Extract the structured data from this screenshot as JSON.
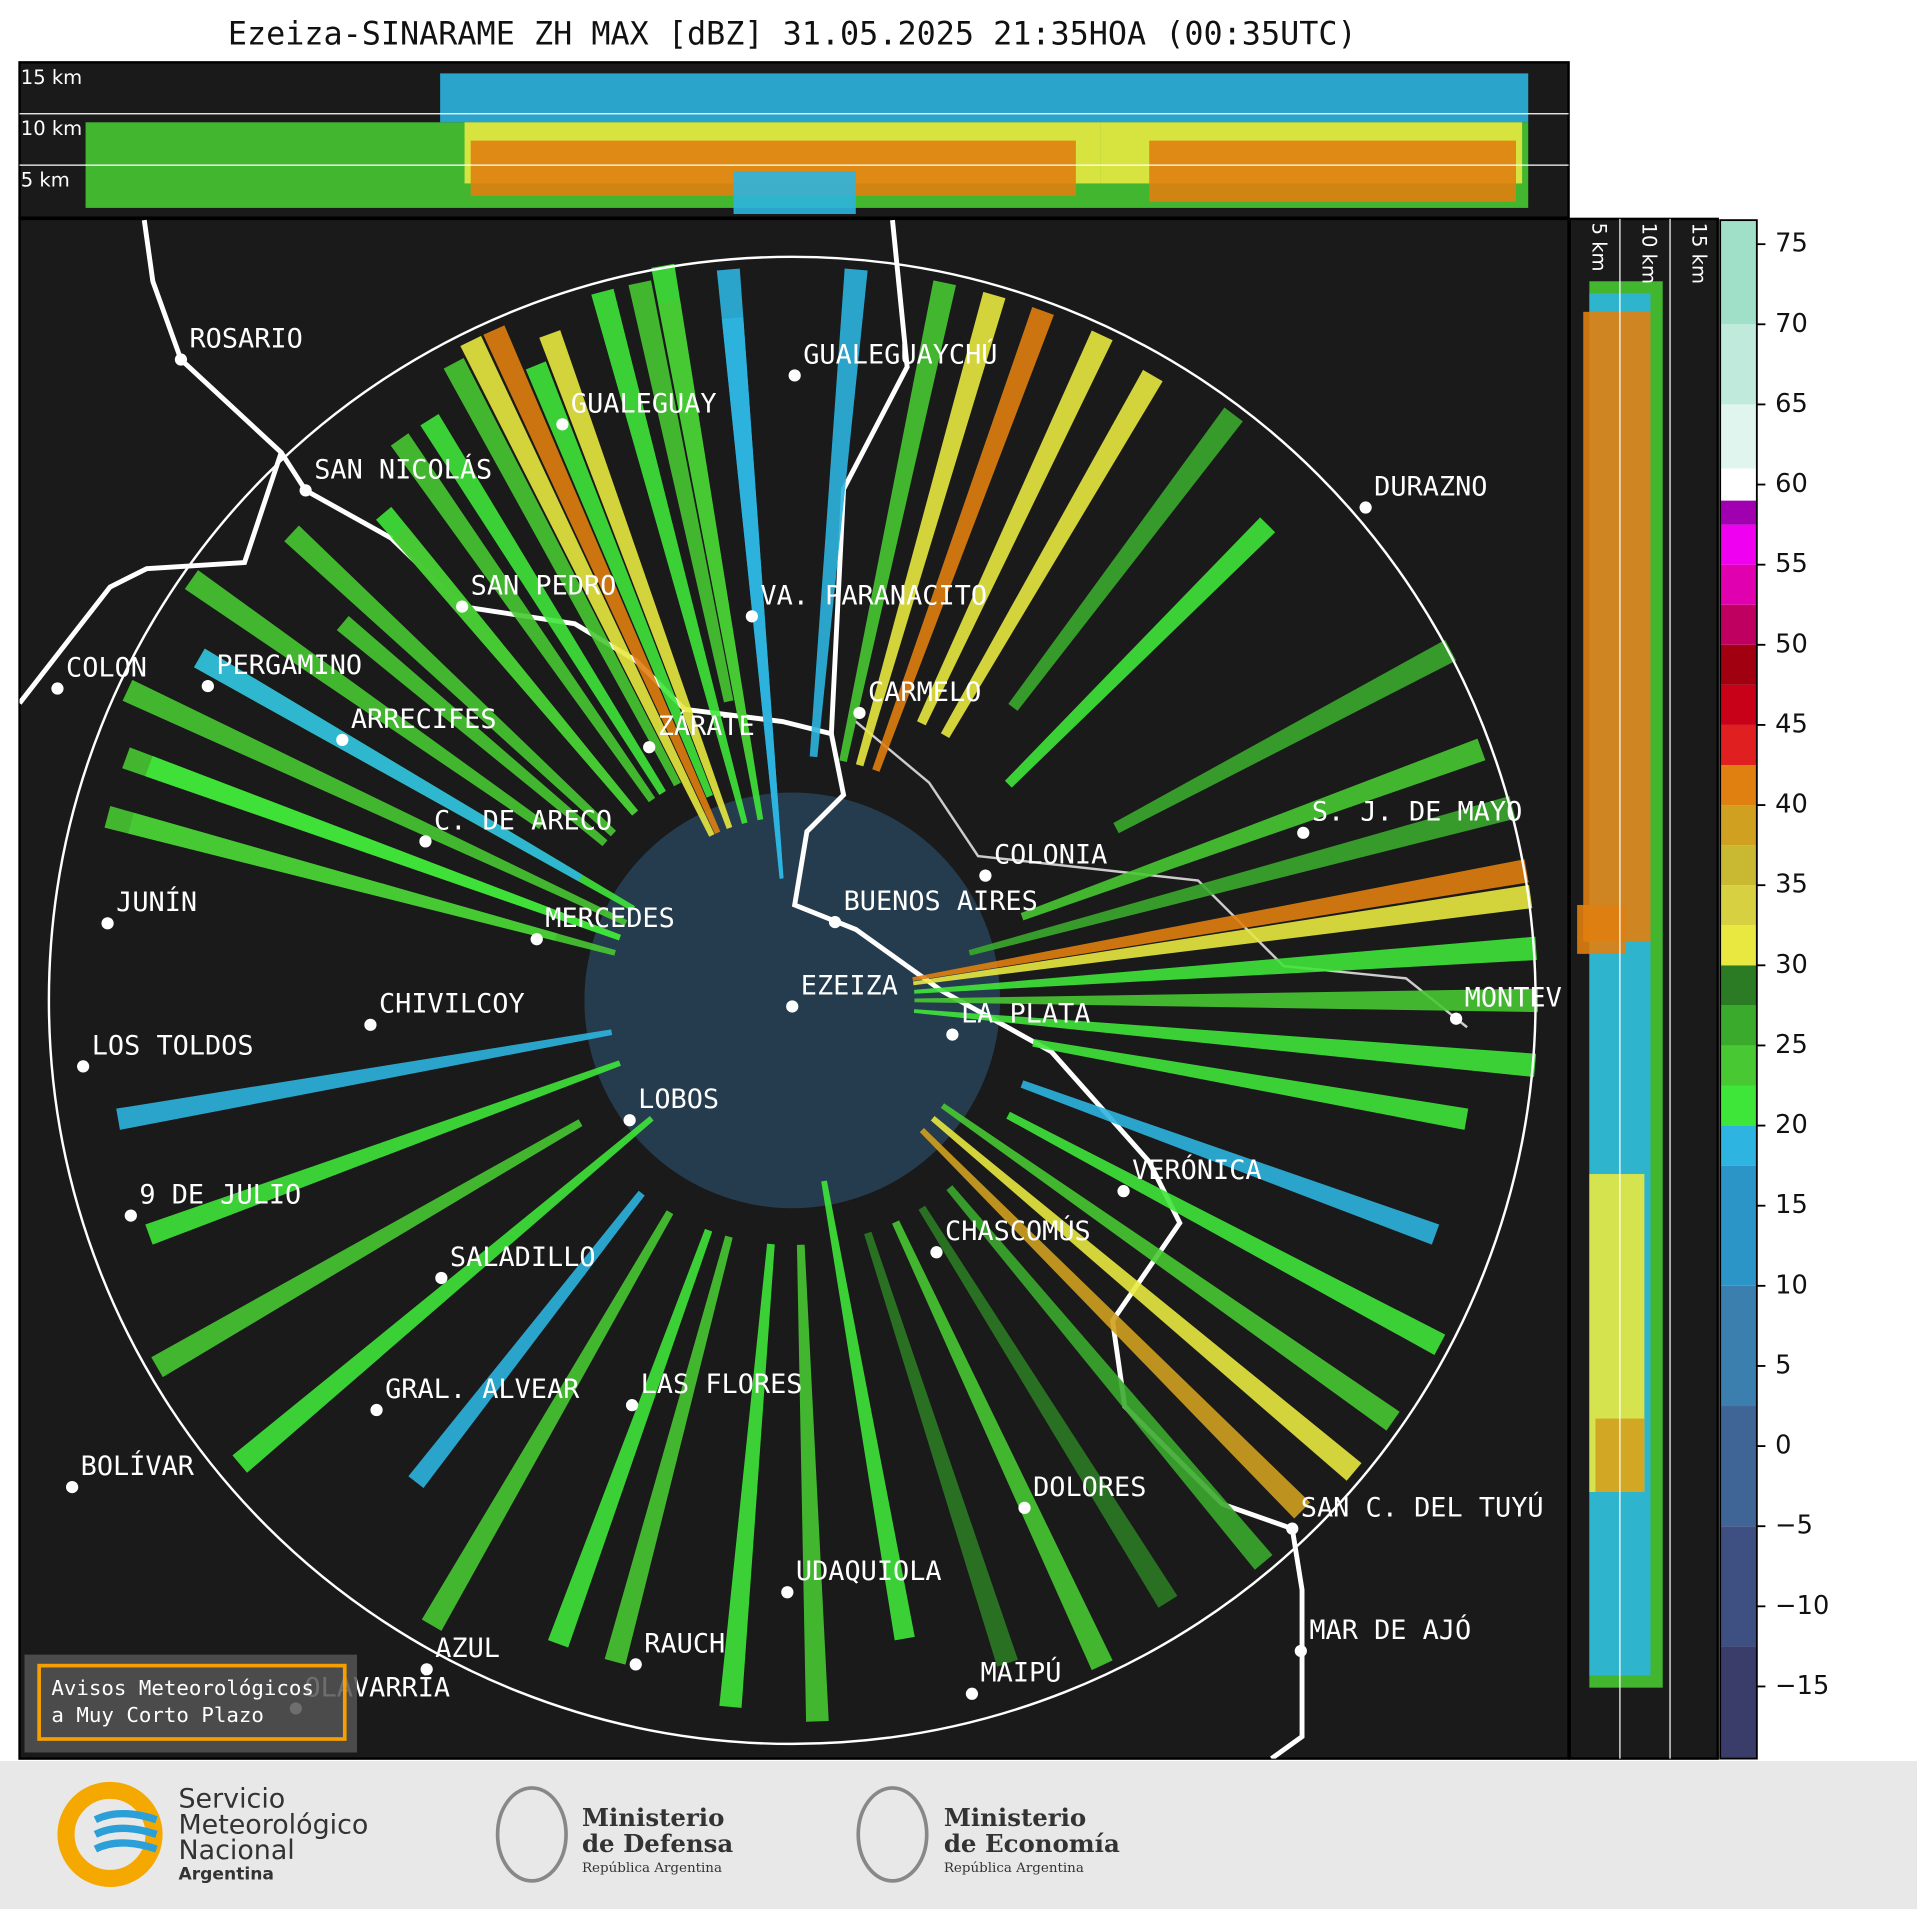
{
  "header": {
    "title": "Ezeiza-SINARAME ZH MAX [dBZ] 31.05.2025 21:35HOA (00:35UTC)"
  },
  "height_panels": {
    "top_labels": [
      "15 km",
      "10 km",
      "5 km"
    ],
    "side_labels": [
      "5 km",
      "10 km",
      "15 km"
    ]
  },
  "map": {
    "cities": [
      "ROSARIO",
      "GUALEGUAYCHÚ",
      "GUALEGUAY",
      "SAN NICOLÁS",
      "DURAZNO",
      "SAN PEDRO",
      "VA. PARANACITO",
      "COLON",
      "PERGAMINO",
      "CARMELO",
      "ARRECIFES",
      "ZÁRATE",
      "S. J. DE MAYO",
      "C. DE ARECO",
      "COLONIA",
      "BUENOS AIRES",
      "JUNÍN",
      "MERCEDES",
      "EZEIZA",
      "MONTEV",
      "LA PLATA",
      "CHIVILCOY",
      "LOS TOLDOS",
      "LOBOS",
      "VERÓNICA",
      "9 DE JULIO",
      "CHASCOMÚS",
      "SALADILLO",
      "GRAL. ALVEAR",
      "LAS FLORES",
      "BOLÍVAR",
      "DOLORES",
      "SAN C. DEL TUYÚ",
      "UDAQUIOLA",
      "MAR DE AJÓ",
      "AZUL",
      "RAUCH",
      "OLAVARRÍA",
      "MAIPÚ"
    ]
  },
  "warning_box": {
    "lines": [
      "Avisos Meteorológicos",
      "a Muy Corto Plazo"
    ]
  },
  "colorbar": {
    "clim": [
      -19.5,
      76.5
    ],
    "ticks": [
      {
        "value": -15,
        "label": "−15"
      },
      {
        "value": -10,
        "label": "−10"
      },
      {
        "value": -5,
        "label": "−5"
      },
      0,
      5,
      10,
      15,
      20,
      25,
      30,
      35,
      40,
      45,
      50,
      55,
      60,
      65,
      70,
      75
    ],
    "colormap": [
      [
        -19.5,
        "#3a3c6a"
      ],
      [
        -12.5,
        "#3e4f82"
      ],
      [
        -5,
        "#3f6597"
      ],
      [
        2.5,
        "#3a7fae"
      ],
      [
        10,
        "#2b95c8"
      ],
      [
        17.5,
        "#2db4e0"
      ],
      [
        20,
        "#3fe63a"
      ],
      [
        22.5,
        "#48c833"
      ],
      [
        25,
        "#3aaa2c"
      ],
      [
        27.5,
        "#2b7a24"
      ],
      [
        30,
        "#e8e840"
      ],
      [
        32.5,
        "#d7d040"
      ],
      [
        35,
        "#c8b832"
      ],
      [
        37.5,
        "#d0a020"
      ],
      [
        40,
        "#e08010"
      ],
      [
        42.5,
        "#e02020"
      ],
      [
        45,
        "#c80018"
      ],
      [
        47.5,
        "#a00010"
      ],
      [
        50,
        "#c00060"
      ],
      [
        52.5,
        "#e000b0"
      ],
      [
        55,
        "#f000f0"
      ],
      [
        57.5,
        "#a000b0"
      ],
      [
        59,
        "#ffffff"
      ],
      [
        61,
        "#e0f5ee"
      ],
      [
        65,
        "#c0ebdc"
      ],
      [
        70,
        "#a0e0c8"
      ]
    ]
  },
  "footer": {
    "logos": [
      {
        "lines": [
          "Servicio",
          "Meteorológico",
          "Nacional"
        ],
        "country": "Argentina"
      },
      {
        "lines": [
          "Ministerio",
          "de Defensa"
        ],
        "country": "República Argentina"
      },
      {
        "lines": [
          "Ministerio",
          "de Economía"
        ],
        "country": "República Argentina"
      }
    ]
  }
}
